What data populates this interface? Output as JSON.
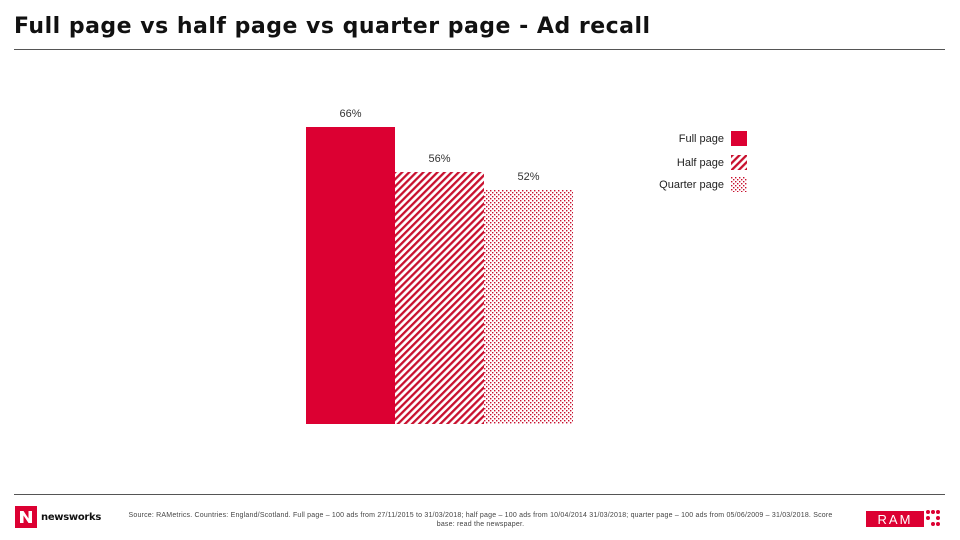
{
  "title": "Full page vs half page vs quarter page - Ad recall",
  "legend": [
    {
      "label": "Full page"
    },
    {
      "label": "Half page"
    },
    {
      "label": "Quarter page"
    }
  ],
  "colors": {
    "accent": "#dc0032",
    "text": "#111111",
    "rule": "#555555"
  },
  "chart_data": {
    "type": "bar",
    "categories": [
      "Full page",
      "Half page",
      "Quarter page"
    ],
    "values": [
      66,
      56,
      52
    ],
    "value_labels": [
      "66%",
      "56%",
      "52%"
    ],
    "unit": "%",
    "patterns": [
      "solid",
      "diagonal-stripes",
      "dotted"
    ],
    "axes_visible": false,
    "grid": false,
    "legend_position": "top-right"
  },
  "footer": {
    "source": "Source: RAMetrics. Countries: England/Scotland. Full page – 100 ads from 27/11/2015 to 31/03/2018; half page – 100 ads from 10/04/2014 31/03/2018; quarter page – 100 ads from 05/06/2009 – 31/03/2018. Score base: read the newspaper.",
    "logo_text": "newsworks",
    "ram_logo_text": "RAM"
  }
}
